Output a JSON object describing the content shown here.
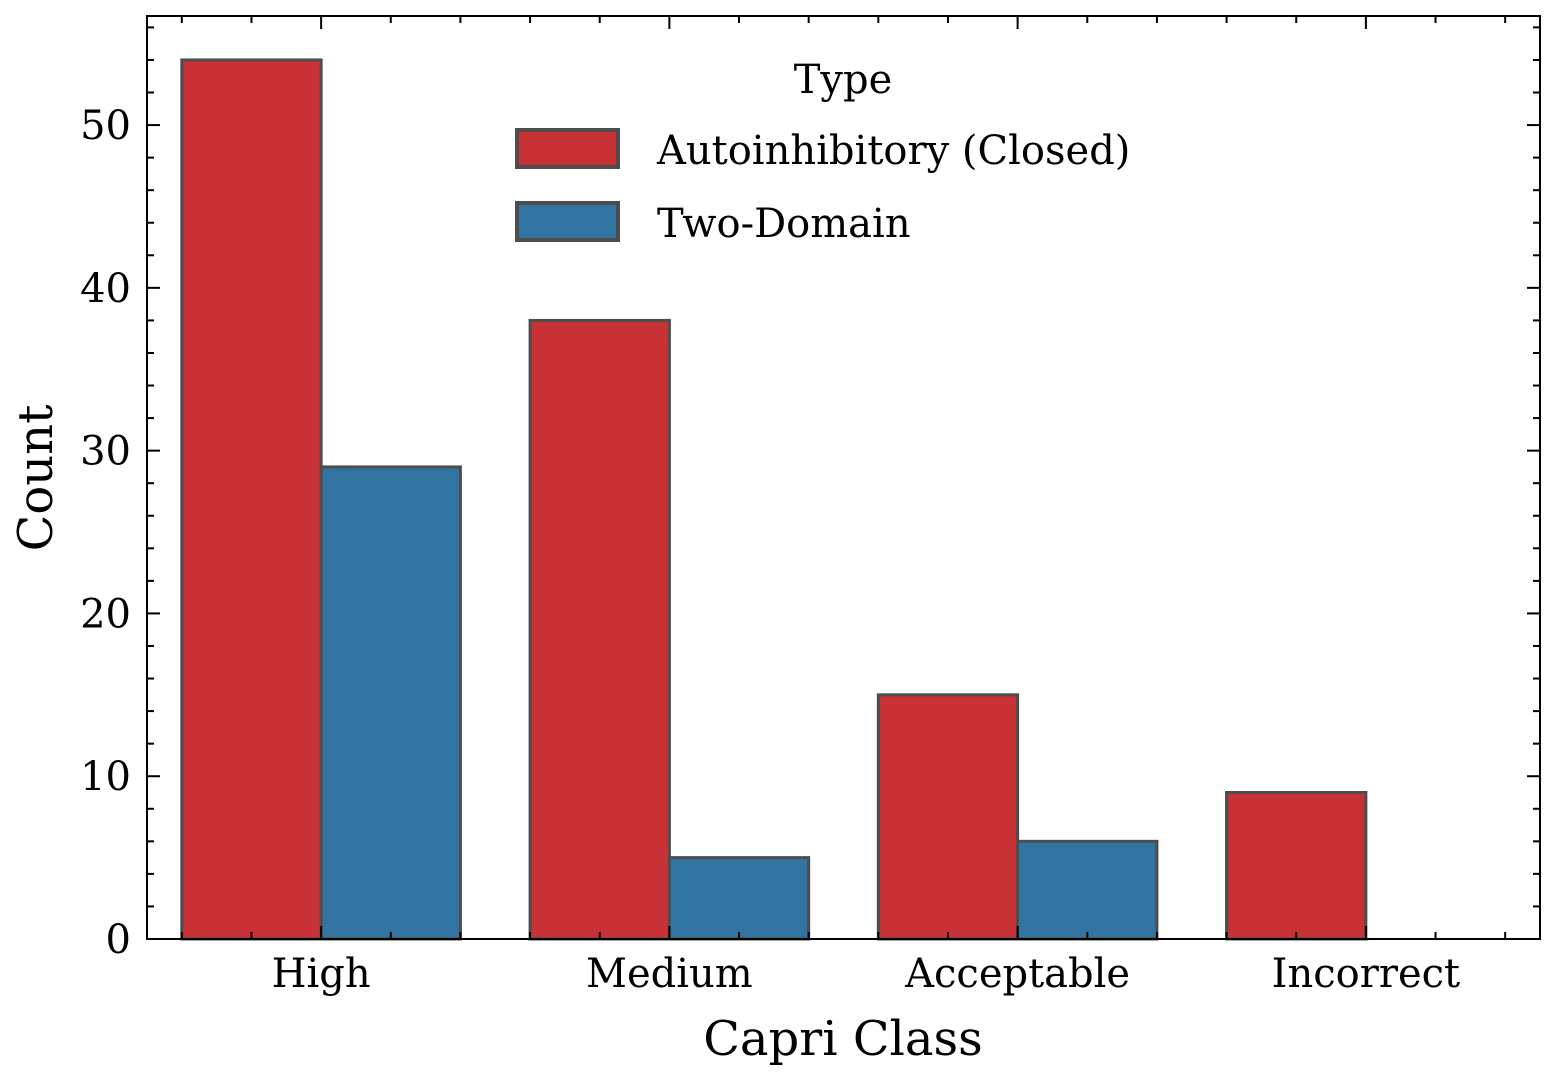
{
  "chart_data": {
    "type": "bar",
    "categories": [
      "High",
      "Medium",
      "Acceptable",
      "Incorrect"
    ],
    "series": [
      {
        "name": "Autoinhibitory (Closed)",
        "values": [
          54,
          38,
          15,
          9
        ],
        "color": "#c83236"
      },
      {
        "name": "Two-Domain",
        "values": [
          29,
          5,
          6,
          0
        ],
        "color": "#3274a1"
      }
    ],
    "xlabel": "Capri Class",
    "ylabel": "Count",
    "ylim": [
      0,
      56.7
    ],
    "yticks": [
      0,
      10,
      20,
      30,
      40,
      50
    ],
    "yticks_minor_step": 2,
    "legend": {
      "title": "Type",
      "placement": "top-center"
    },
    "grid": false,
    "bar_edge_color": "#4d4d4d"
  }
}
